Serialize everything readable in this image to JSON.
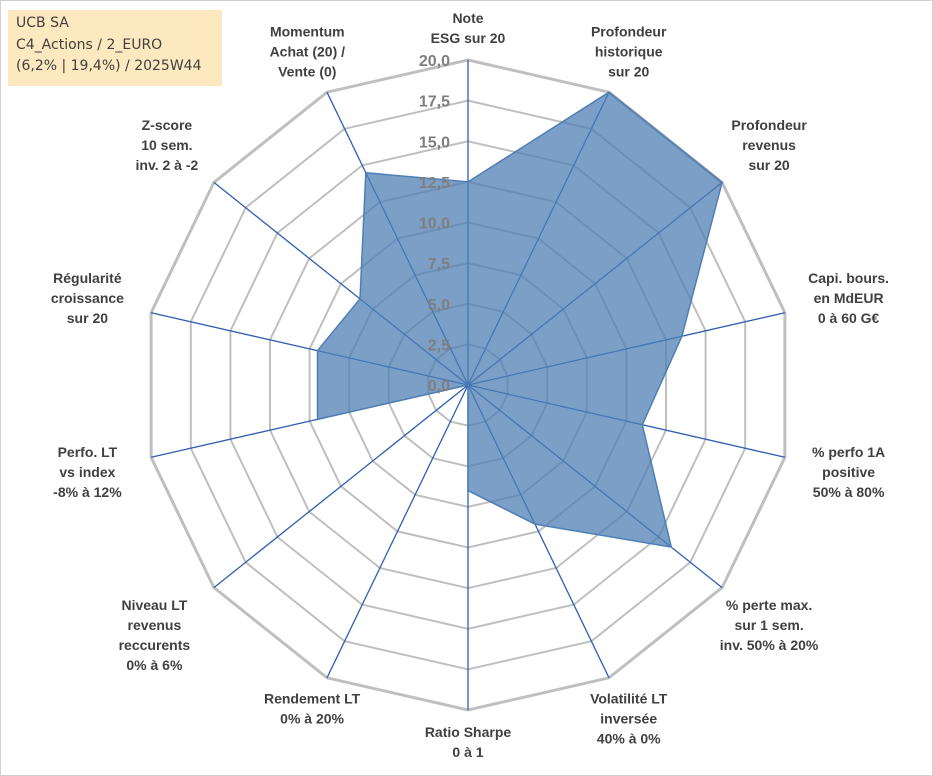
{
  "info_box": {
    "line1": "UCB SA",
    "line2": "C4_Actions / 2_EURO",
    "line3": "(6,2% | 19,4%) / 2025W44"
  },
  "colors": {
    "fill": "#4f7fb4",
    "axis": "#2e5fb0",
    "grid": "#bfbfbf",
    "label": "#404040",
    "tick": "#7f7f7f",
    "info_bg": "#fde9bf"
  },
  "chart_data": {
    "type": "radar",
    "rmin": 0,
    "rmax": 20,
    "ticks": [
      "0,0",
      "2,5",
      "5,0",
      "7,5",
      "10,0",
      "12,5",
      "15,0",
      "17,5",
      "20,0"
    ],
    "axes": [
      {
        "label": [
          "Note",
          "ESG sur 20"
        ],
        "value": 12.5
      },
      {
        "label": [
          "Profondeur",
          "historique",
          "sur 20"
        ],
        "value": 20
      },
      {
        "label": [
          "Profondeur",
          "revenus",
          "sur 20"
        ],
        "value": 20
      },
      {
        "label": [
          "Capi. bours.",
          "en MdEUR",
          "0 à 60 G€"
        ],
        "value": 13.5
      },
      {
        "label": [
          "% perfo 1A",
          "positive",
          "50% à 80%"
        ],
        "value": 11
      },
      {
        "label": [
          "% perte max.",
          "sur 1 sem.",
          "inv. 50% à 20%"
        ],
        "value": 16
      },
      {
        "label": [
          "Volatilité LT",
          "inversée",
          "40% à 0%"
        ],
        "value": 9.5
      },
      {
        "label": [
          "Ratio Sharpe",
          "0 à 1"
        ],
        "value": 6.5
      },
      {
        "label": [
          "Rendement LT",
          "0% à 20%"
        ],
        "value": 0
      },
      {
        "label": [
          "Niveau LT",
          "revenus",
          "reccurents",
          "0% à 6%"
        ],
        "value": 0
      },
      {
        "label": [
          "Perfo. LT",
          "vs index",
          "-8% à 12%"
        ],
        "value": 9.5
      },
      {
        "label": [
          "Régularité",
          "croissance",
          "sur 20"
        ],
        "value": 9.5
      },
      {
        "label": [
          "Z-score",
          "10 sem.",
          "inv. 2 à -2"
        ],
        "value": 8.5
      },
      {
        "label": [
          "Momentum",
          "Achat (20) /",
          "Vente (0)"
        ],
        "value": 14.5
      }
    ]
  }
}
